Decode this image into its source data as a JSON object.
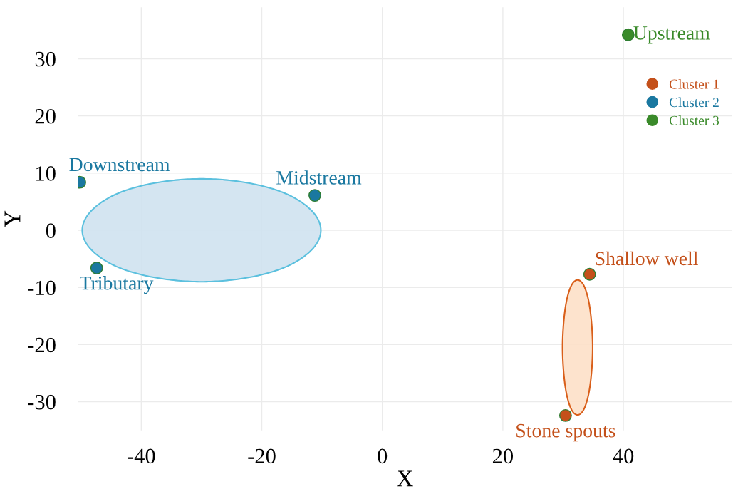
{
  "chart_data": {
    "type": "scatter",
    "xlabel": "X",
    "ylabel": "Y",
    "xlim": [
      -50.5,
      58
    ],
    "ylim": [
      -35,
      39
    ],
    "xticks": [
      -40,
      -20,
      0,
      20,
      40
    ],
    "yticks": [
      -30,
      -20,
      -10,
      0,
      10,
      20,
      30
    ],
    "grid": true,
    "legend": "top right",
    "series": [
      {
        "type": "area",
        "color": "#cfe2ef",
        "x": [
          -10.2,
          -11.7,
          -16.0,
          -22.4,
          -30,
          -37.6,
          -44.0,
          -48.3,
          -49.8,
          -48.3,
          -44.0,
          -37.6,
          -30,
          -22.4,
          -16.0,
          -11.7,
          -10.2
        ],
        "values": [
          0,
          3.4,
          6.4,
          8.3,
          9,
          8.3,
          6.4,
          3.4,
          0,
          -3.4,
          -6.4,
          -8.3,
          -9,
          -8.3,
          -6.4,
          -3.4,
          0
        ]
      },
      {
        "type": "area",
        "color": "#fde0c8",
        "x": [
          34.9,
          34.7,
          34.2,
          33.4,
          32.4,
          31.4,
          30.6,
          30.1,
          29.9,
          30.1,
          30.6,
          31.4,
          32.4,
          33.4,
          34.2,
          34.7,
          34.9
        ],
        "values": [
          -20.5,
          -16.0,
          -12.2,
          -9.6,
          -8.7,
          -9.6,
          -12.2,
          -16.0,
          -20.5,
          -25.0,
          -28.8,
          -31.4,
          -32.3,
          -31.4,
          -28.8,
          -25.0,
          -20.5
        ]
      },
      {
        "name": "Cluster 1",
        "color": "#c4501a",
        "marker": "circle",
        "x": [
          34.4,
          30.4
        ],
        "values": [
          -7.7,
          -32.4
        ],
        "value_labels": [
          "Shallow well",
          "Stone spouts"
        ]
      },
      {
        "name": "Cluster 2",
        "color": "#1a78a0",
        "marker": "circle",
        "x": [
          -50.2,
          -11.2,
          -47.4
        ],
        "values": [
          8.4,
          6.1,
          -6.6
        ],
        "value_labels": [
          "Downstream",
          "Midstream",
          "Tributary"
        ]
      },
      {
        "name": "Cluster 3",
        "color": "#3a8a2a",
        "marker": "circle",
        "x": [
          40.8
        ],
        "values": [
          34.2
        ],
        "value_labels": [
          "Upstream"
        ]
      }
    ]
  }
}
